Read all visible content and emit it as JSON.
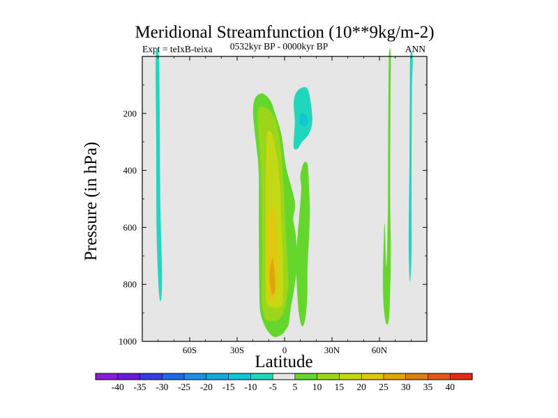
{
  "chart_data": {
    "type": "contour",
    "title": "Meridional Streamfunction (10**9kg/m-2)",
    "subtitle_left": "Expt = teIxB-teixa",
    "subtitle_center": "0532kyr BP - 0000kyr BP",
    "subtitle_right": "ANN",
    "xlabel": "Latitude",
    "ylabel": "Pressure (in hPa)",
    "xlim": [
      -90,
      90
    ],
    "ylim": [
      0,
      1000
    ],
    "y_reversed": true,
    "x_ticks": [
      {
        "value": -60,
        "label": "60S"
      },
      {
        "value": -30,
        "label": "30S"
      },
      {
        "value": 0,
        "label": "0"
      },
      {
        "value": 30,
        "label": "30N"
      },
      {
        "value": 60,
        "label": "60N"
      }
    ],
    "y_ticks": [
      {
        "value": 200,
        "label": "200"
      },
      {
        "value": 400,
        "label": "400"
      },
      {
        "value": 600,
        "label": "600"
      },
      {
        "value": 800,
        "label": "800"
      },
      {
        "value": 1000,
        "label": "1000"
      }
    ],
    "background_color": "#e6e6e6",
    "colorbar": {
      "levels": [
        "-40",
        "-35",
        "-30",
        "-25",
        "-20",
        "-15",
        "-10",
        "-5",
        "5",
        "10",
        "15",
        "20",
        "25",
        "30",
        "35",
        "40"
      ],
      "colors": [
        "#8a1bd6",
        "#6a1bd6",
        "#3a3ce0",
        "#1f68e6",
        "#1c8fe6",
        "#1aa8dc",
        "#11c5d6",
        "#20d6bd",
        "#e6e6e6",
        "#64d62c",
        "#9bd61a",
        "#c4d813",
        "#e0c80e",
        "#e0a50d",
        "#e07f10",
        "#e05a12",
        "#e02e14"
      ]
    },
    "regions": [
      {
        "name": "contour-neg-5-south-column",
        "level": "-5",
        "color": "#20d6bd",
        "points": [
          [
            -81.5,
            0
          ],
          [
            -79.5,
            0
          ],
          [
            -79,
            180
          ],
          [
            -78.6,
            500
          ],
          [
            -77.5,
            780
          ],
          [
            -78.5,
            860
          ],
          [
            -79.8,
            800
          ],
          [
            -81,
            600
          ],
          [
            -81.2,
            300
          ]
        ]
      },
      {
        "name": "contour-pos-5-main",
        "level": "5",
        "color": "#64d62c",
        "points": [
          [
            -16.5,
            390
          ],
          [
            -19,
            260
          ],
          [
            -20,
            190
          ],
          [
            -18.5,
            145
          ],
          [
            -14,
            130
          ],
          [
            -9,
            155
          ],
          [
            -6,
            200
          ],
          [
            -2,
            275
          ],
          [
            1,
            390
          ],
          [
            6.5,
            510
          ],
          [
            5.5,
            570
          ],
          [
            7,
            625
          ],
          [
            8,
            720
          ],
          [
            6.5,
            800
          ],
          [
            4,
            880
          ],
          [
            2.5,
            940
          ],
          [
            0.5,
            960
          ],
          [
            -1.5,
            975
          ],
          [
            -6,
            985
          ],
          [
            -9.5,
            972
          ],
          [
            -13,
            940
          ],
          [
            -15.5,
            890
          ],
          [
            -16,
            800
          ],
          [
            -16.2,
            700
          ],
          [
            -16.3,
            600
          ],
          [
            -16.3,
            500
          ]
        ]
      },
      {
        "name": "contour-pos-5-right-lobe",
        "level": "5",
        "color": "#64d62c",
        "points": [
          [
            10.5,
            465
          ],
          [
            10,
            420
          ],
          [
            12,
            375
          ],
          [
            14.5,
            380
          ],
          [
            15.5,
            460
          ],
          [
            16,
            550
          ],
          [
            15.3,
            650
          ],
          [
            14.5,
            750
          ],
          [
            14.3,
            850
          ],
          [
            12.8,
            930
          ],
          [
            10.8,
            945
          ],
          [
            9,
            900
          ],
          [
            7.7,
            800
          ],
          [
            7.3,
            700
          ],
          [
            9.3,
            560
          ]
        ]
      },
      {
        "name": "contour-pos-10",
        "level": "10",
        "color": "#9bd61a",
        "points": [
          [
            -16,
            300
          ],
          [
            -17,
            220
          ],
          [
            -16,
            180
          ],
          [
            -12,
            180
          ],
          [
            -8,
            200
          ],
          [
            -5,
            235
          ],
          [
            -2,
            340
          ],
          [
            -0.5,
            470
          ],
          [
            0.5,
            590
          ],
          [
            2,
            750
          ],
          [
            2.5,
            800
          ],
          [
            1,
            860
          ],
          [
            -1,
            900
          ],
          [
            -4,
            925
          ],
          [
            -8,
            930
          ],
          [
            -12,
            920
          ],
          [
            -14,
            880
          ],
          [
            -14.5,
            820
          ],
          [
            -14.2,
            700
          ],
          [
            -14.5,
            560
          ],
          [
            -14.8,
            440
          ]
        ]
      },
      {
        "name": "contour-pos-15",
        "level": "15",
        "color": "#c4d813",
        "points": [
          [
            -11,
            270
          ],
          [
            -8,
            270
          ],
          [
            -4.8,
            350
          ],
          [
            -3.5,
            420
          ],
          [
            -2.5,
            490
          ],
          [
            -2,
            600
          ],
          [
            -1,
            720
          ],
          [
            -1,
            850
          ],
          [
            -3,
            880
          ],
          [
            -8,
            880
          ],
          [
            -11.5,
            860
          ],
          [
            -12,
            760
          ],
          [
            -12,
            600
          ],
          [
            -12,
            450
          ],
          [
            -11.5,
            330
          ]
        ]
      },
      {
        "name": "contour-pos-20",
        "level": "20",
        "color": "#e0c80e",
        "points": [
          [
            -10,
            550
          ],
          [
            -8,
            530
          ],
          [
            -6,
            550
          ],
          [
            -4.5,
            640
          ],
          [
            -4,
            750
          ],
          [
            -5,
            820
          ],
          [
            -7,
            860
          ],
          [
            -10,
            850
          ],
          [
            -11,
            760
          ],
          [
            -11,
            650
          ]
        ]
      },
      {
        "name": "contour-pos-25",
        "level": "25",
        "color": "#e0a50d",
        "points": [
          [
            -8.5,
            725
          ],
          [
            -7.5,
            710
          ],
          [
            -6.3,
            760
          ],
          [
            -6,
            815
          ],
          [
            -7.5,
            840
          ],
          [
            -9,
            810
          ],
          [
            -9.5,
            760
          ]
        ]
      },
      {
        "name": "contour-pos-5-north-band",
        "level": "5",
        "color": "#64d62c",
        "points": [
          [
            66,
            0
          ],
          [
            67.2,
            0
          ],
          [
            67,
            150
          ],
          [
            66.8,
            500
          ],
          [
            67.2,
            700
          ],
          [
            66.3,
            900
          ],
          [
            64.5,
            940
          ],
          [
            62.7,
            880
          ],
          [
            62.2,
            780
          ],
          [
            62.7,
            650
          ],
          [
            63.4,
            590
          ],
          [
            64.4,
            740
          ],
          [
            65.3,
            550
          ],
          [
            65.5,
            300
          ]
        ]
      },
      {
        "name": "contour-neg-5-north-column",
        "level": "-5",
        "color": "#20d6bd",
        "points": [
          [
            79.5,
            0
          ],
          [
            81,
            0
          ],
          [
            80.5,
            150
          ],
          [
            80.3,
            500
          ],
          [
            80.3,
            700
          ],
          [
            79.2,
            790
          ],
          [
            78.5,
            650
          ],
          [
            79,
            350
          ],
          [
            79.2,
            150
          ]
        ]
      },
      {
        "name": "contour-neg-5-cell",
        "level": "-5",
        "color": "#20d6bd",
        "points": [
          [
            6.5,
            230
          ],
          [
            5.8,
            160
          ],
          [
            8.2,
            120
          ],
          [
            14,
            110
          ],
          [
            16.5,
            160
          ],
          [
            17.5,
            230
          ],
          [
            15,
            275
          ],
          [
            11,
            300
          ],
          [
            8,
            325
          ],
          [
            5.7,
            315
          ]
        ]
      },
      {
        "name": "contour-neg-10-cell",
        "level": "-10",
        "color": "#11c5d6",
        "points": [
          [
            9.8,
            210
          ],
          [
            10.8,
            200
          ],
          [
            13.4,
            205
          ],
          [
            14.8,
            230
          ],
          [
            12.7,
            245
          ],
          [
            9.8,
            235
          ]
        ]
      }
    ]
  }
}
